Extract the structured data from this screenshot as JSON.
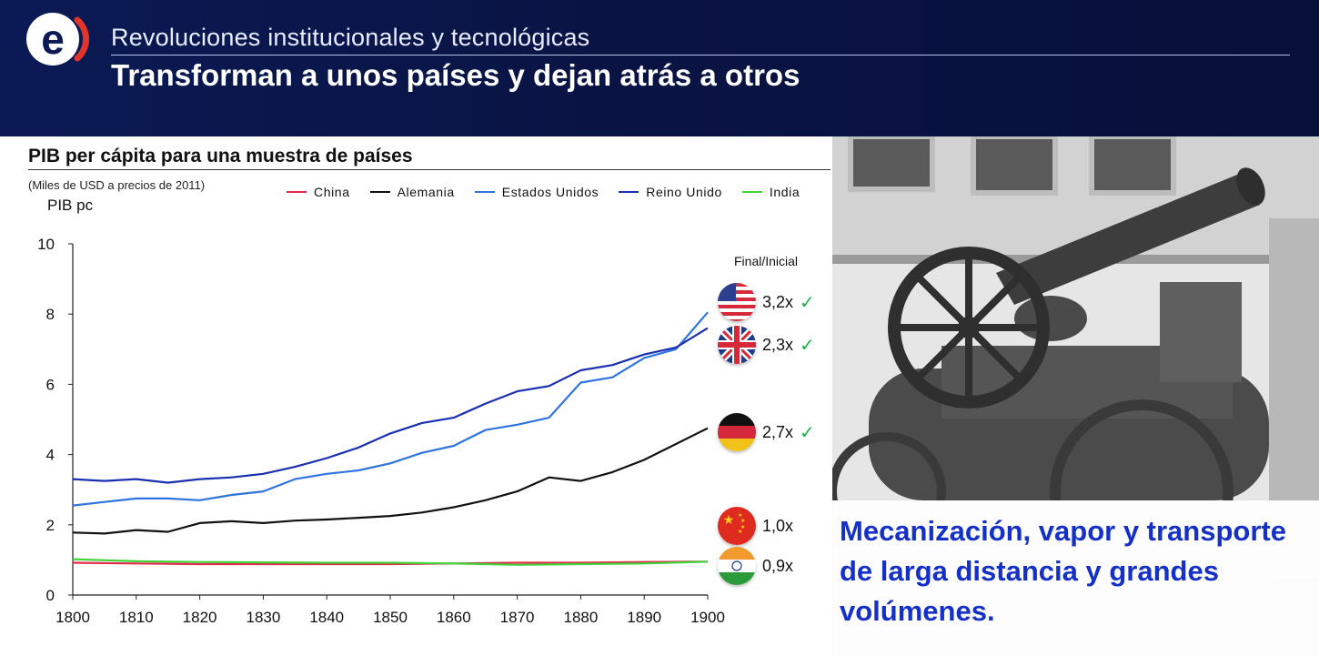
{
  "header": {
    "subtitle": "Revoluciones institucionales y tecnológicas",
    "title": "Transforman a unos países y dejan atrás a otros",
    "logo_letter": "e",
    "colors": {
      "background": "#0a1444",
      "logo_red": "#e0352b"
    }
  },
  "chart_data": {
    "type": "line",
    "title": "PIB per cápita para una muestra de países",
    "note": "(Miles de USD a precios de 2011)",
    "ylabel": "PIB pc",
    "xlabel": "",
    "xlim": [
      1800,
      1900
    ],
    "ylim": [
      0,
      10
    ],
    "x_ticks": [
      1800,
      1810,
      1820,
      1830,
      1840,
      1850,
      1860,
      1870,
      1880,
      1890,
      1900
    ],
    "y_ticks": [
      0,
      2,
      4,
      6,
      8,
      10
    ],
    "grid": false,
    "legend_position": "top",
    "series": [
      {
        "name": "China",
        "color": "#e3284a",
        "x": [
          1800,
          1810,
          1820,
          1830,
          1840,
          1850,
          1860,
          1870,
          1880,
          1890,
          1900
        ],
        "y": [
          0.92,
          0.9,
          0.88,
          0.88,
          0.88,
          0.88,
          0.9,
          0.92,
          0.92,
          0.94,
          0.95
        ]
      },
      {
        "name": "Alemania",
        "color": "#111111",
        "x": [
          1800,
          1805,
          1810,
          1815,
          1820,
          1825,
          1830,
          1835,
          1840,
          1845,
          1850,
          1855,
          1860,
          1865,
          1870,
          1875,
          1880,
          1885,
          1890,
          1895,
          1900
        ],
        "y": [
          1.78,
          1.75,
          1.85,
          1.8,
          2.05,
          2.1,
          2.05,
          2.12,
          2.15,
          2.2,
          2.25,
          2.35,
          2.5,
          2.7,
          2.95,
          3.35,
          3.25,
          3.5,
          3.85,
          4.3,
          4.75
        ]
      },
      {
        "name": "Estados Unidos",
        "color": "#2f74e0",
        "x": [
          1800,
          1805,
          1810,
          1815,
          1820,
          1825,
          1830,
          1835,
          1840,
          1845,
          1850,
          1855,
          1860,
          1865,
          1870,
          1875,
          1880,
          1885,
          1890,
          1895,
          1900
        ],
        "y": [
          2.55,
          2.65,
          2.75,
          2.75,
          2.7,
          2.85,
          2.95,
          3.3,
          3.45,
          3.55,
          3.75,
          4.05,
          4.25,
          4.7,
          4.85,
          5.05,
          6.05,
          6.2,
          6.75,
          7.0,
          8.05
        ]
      },
      {
        "name": "Reino Unido",
        "color": "#1a2fb0",
        "x": [
          1800,
          1805,
          1810,
          1815,
          1820,
          1825,
          1830,
          1835,
          1840,
          1845,
          1850,
          1855,
          1860,
          1865,
          1870,
          1875,
          1880,
          1885,
          1890,
          1895,
          1900
        ],
        "y": [
          3.3,
          3.25,
          3.3,
          3.2,
          3.3,
          3.35,
          3.45,
          3.65,
          3.9,
          4.2,
          4.6,
          4.9,
          5.05,
          5.45,
          5.8,
          5.95,
          6.4,
          6.55,
          6.85,
          7.05,
          7.6
        ]
      },
      {
        "name": "India",
        "color": "#3fd43a",
        "x": [
          1800,
          1810,
          1820,
          1830,
          1840,
          1850,
          1860,
          1870,
          1880,
          1890,
          1900
        ],
        "y": [
          1.02,
          0.96,
          0.94,
          0.93,
          0.92,
          0.92,
          0.9,
          0.86,
          0.88,
          0.9,
          0.95
        ]
      }
    ],
    "annotations": {
      "header": "Final/Inicial",
      "items": [
        {
          "country": "Estados Unidos",
          "ratio": "3,2x",
          "check": true,
          "flag": "us-flag"
        },
        {
          "country": "Reino Unido",
          "ratio": "2,3x",
          "check": true,
          "flag": "uk-flag"
        },
        {
          "country": "Alemania",
          "ratio": "2,7x",
          "check": true,
          "flag": "germany-flag"
        },
        {
          "country": "China",
          "ratio": "1,0x",
          "check": false,
          "flag": "china-flag"
        },
        {
          "country": "India",
          "ratio": "0,9x",
          "check": false,
          "flag": "india-flag"
        }
      ]
    }
  },
  "photo": {
    "subject": "steam-locomobile-image",
    "caption": "Mecanización, vapor y transporte de larga distancia y grandes volúmenes.",
    "caption_color": "#1430c8"
  }
}
